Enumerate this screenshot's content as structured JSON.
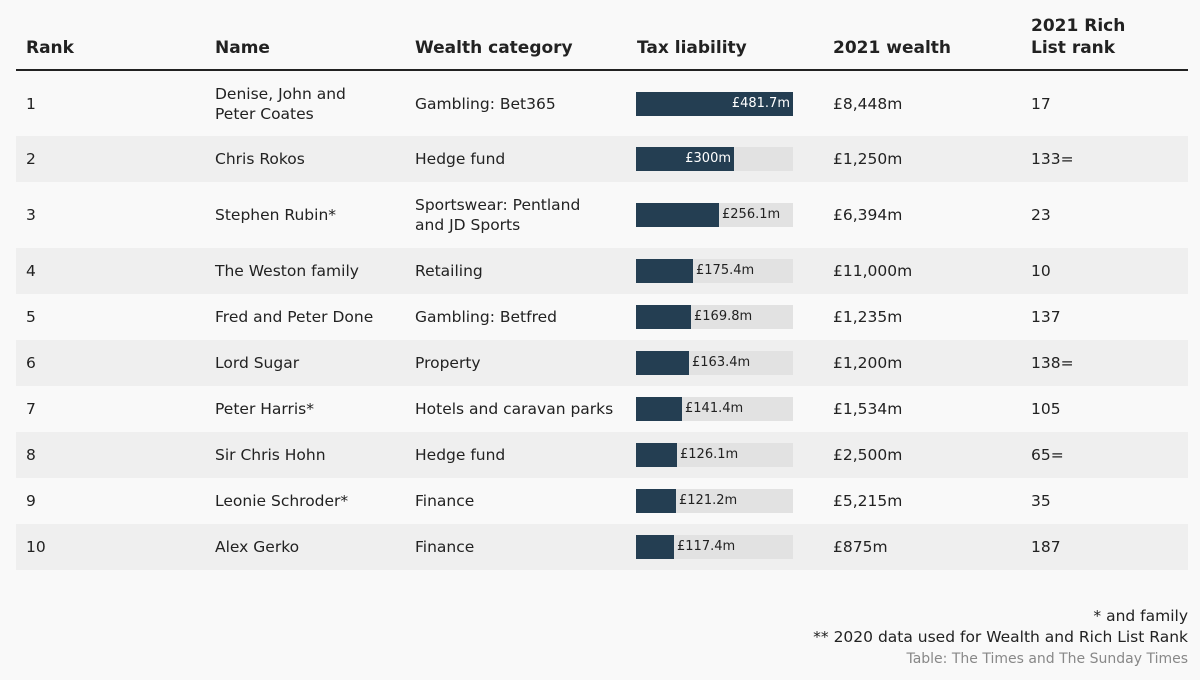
{
  "chart_data": {
    "type": "table",
    "columns": [
      "Rank",
      "Name",
      "Wealth category",
      "Tax liability",
      "2021 wealth",
      "2021 Rich List rank"
    ],
    "rows": [
      {
        "rank": "1",
        "name": "Denise, John and Peter Coates",
        "category": "Gambling: Bet365",
        "tax": 481.7,
        "tax_label": "£481.7m",
        "wealth": "£8,448m",
        "rl_rank": "17"
      },
      {
        "rank": "2",
        "name": "Chris Rokos",
        "category": "Hedge fund",
        "tax": 300,
        "tax_label": "£300m",
        "wealth": "£1,250m",
        "rl_rank": "133="
      },
      {
        "rank": "3",
        "name": "Stephen Rubin*",
        "category": "Sportswear: Pentland and JD Sports",
        "tax": 256.1,
        "tax_label": "£256.1m",
        "wealth": "£6,394m",
        "rl_rank": "23"
      },
      {
        "rank": "4",
        "name": "The Weston family",
        "category": "Retailing",
        "tax": 175.4,
        "tax_label": "£175.4m",
        "wealth": "£11,000m",
        "rl_rank": "10"
      },
      {
        "rank": "5",
        "name": "Fred and Peter Done",
        "category": "Gambling: Betfred",
        "tax": 169.8,
        "tax_label": "£169.8m",
        "wealth": "£1,235m",
        "rl_rank": "137"
      },
      {
        "rank": "6",
        "name": "Lord Sugar",
        "category": "Property",
        "tax": 163.4,
        "tax_label": "£163.4m",
        "wealth": "£1,200m",
        "rl_rank": "138="
      },
      {
        "rank": "7",
        "name": "Peter Harris*",
        "category": "Hotels and caravan parks",
        "tax": 141.4,
        "tax_label": "£141.4m",
        "wealth": "£1,534m",
        "rl_rank": "105"
      },
      {
        "rank": "8",
        "name": "Sir Chris Hohn",
        "category": "Hedge fund",
        "tax": 126.1,
        "tax_label": "£126.1m",
        "wealth": "£2,500m",
        "rl_rank": "65="
      },
      {
        "rank": "9",
        "name": "Leonie Schroder*",
        "category": "Finance",
        "tax": 121.2,
        "tax_label": "£121.2m",
        "wealth": "£5,215m",
        "rl_rank": "35"
      },
      {
        "rank": "10",
        "name": "Alex Gerko",
        "category": "Finance",
        "tax": 117.4,
        "tax_label": "£117.4m",
        "wealth": "£875m",
        "rl_rank": "187"
      }
    ],
    "tax_max": 481.7,
    "colors": {
      "bar": "#243e52",
      "track": "#e2e2e2"
    }
  },
  "footnotes": {
    "family": "* and family",
    "data_2020": "** 2020 data used for Wealth and Rich List Rank",
    "source": "Table: The Times and The Sunday Times"
  }
}
